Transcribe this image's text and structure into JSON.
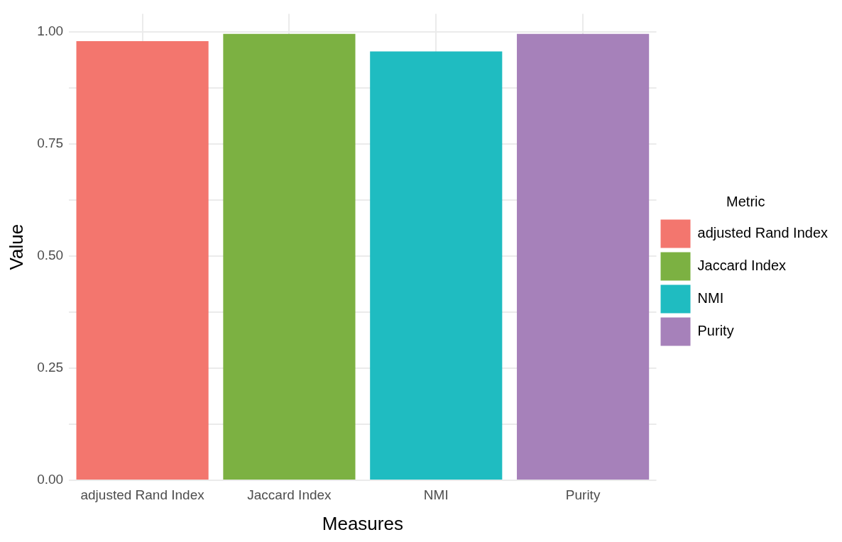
{
  "chart_data": {
    "type": "bar",
    "xlabel": "Measures",
    "ylabel": "Value",
    "legend_title": "Metric",
    "categories": [
      "adjusted Rand Index",
      "Jaccard Index",
      "NMI",
      "Purity"
    ],
    "series": [
      {
        "name": "adjusted Rand Index",
        "color": "#f3766e",
        "values": [
          0.979,
          null,
          null,
          null
        ]
      },
      {
        "name": "Jaccard Index",
        "color": "#7cb142",
        "values": [
          null,
          0.995,
          null,
          null
        ]
      },
      {
        "name": "NMI",
        "color": "#1fbcc1",
        "values": [
          null,
          null,
          0.956,
          null
        ]
      },
      {
        "name": "Purity",
        "color": "#a681ba",
        "values": [
          null,
          null,
          null,
          0.995
        ]
      }
    ],
    "ylim": [
      0,
      1.04
    ],
    "yticks": [
      {
        "value": 0,
        "label": "0.00"
      },
      {
        "value": 0.125,
        "label": null
      },
      {
        "value": 0.25,
        "label": "0.25"
      },
      {
        "value": 0.375,
        "label": null
      },
      {
        "value": 0.5,
        "label": "0.50"
      },
      {
        "value": 0.625,
        "label": null
      },
      {
        "value": 0.75,
        "label": "0.75"
      },
      {
        "value": 0.875,
        "label": null
      },
      {
        "value": 1,
        "label": "1.00"
      }
    ],
    "grid": true,
    "legend": "right"
  }
}
